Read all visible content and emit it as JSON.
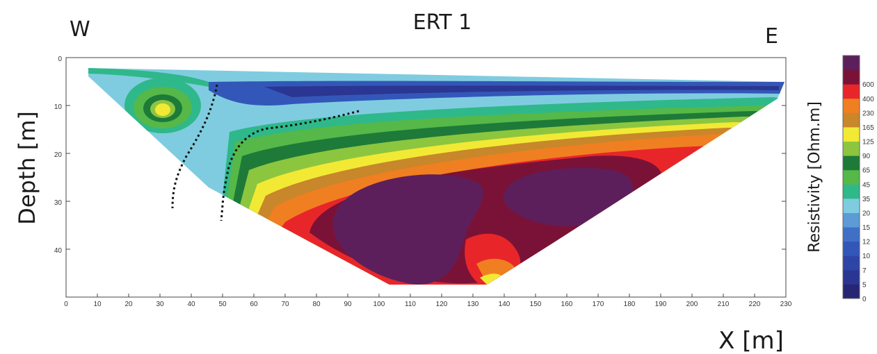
{
  "chart_data": {
    "type": "heatmap",
    "title": "ERT 1",
    "direction_left": "W",
    "direction_right": "E",
    "xlabel": "X [m]",
    "ylabel": "Depth [m]",
    "colorbar_label": "Resistivity [Ohm.m]",
    "xlim": [
      0,
      230
    ],
    "ylim": [
      50,
      0
    ],
    "x_ticks": [
      "0",
      "10",
      "20",
      "30",
      "40",
      "50",
      "60",
      "70",
      "80",
      "90",
      "100",
      "110",
      "120",
      "130",
      "140",
      "150",
      "160",
      "170",
      "180",
      "190",
      "200",
      "210",
      "220",
      "230"
    ],
    "y_ticks": [
      "0",
      "10",
      "20",
      "30",
      "40"
    ],
    "colorbar": {
      "labels": [
        "0",
        "5",
        "7",
        "10",
        "12",
        "15",
        "20",
        "35",
        "45",
        "65",
        "90",
        "125",
        "165",
        "230",
        "400",
        "600"
      ],
      "colors": [
        "#262672",
        "#2b3592",
        "#2e45a8",
        "#3357b8",
        "#3f70c6",
        "#5c9bd6",
        "#7fcce0",
        "#2fb88a",
        "#55b848",
        "#1e7a38",
        "#8cc63f",
        "#f2e935",
        "#c8872a",
        "#f07f22",
        "#e8262a",
        "#7a1238",
        "#5c1f5c"
      ]
    },
    "annotations": [
      "dotted-boundary-west",
      "dotted-boundary-east"
    ]
  }
}
